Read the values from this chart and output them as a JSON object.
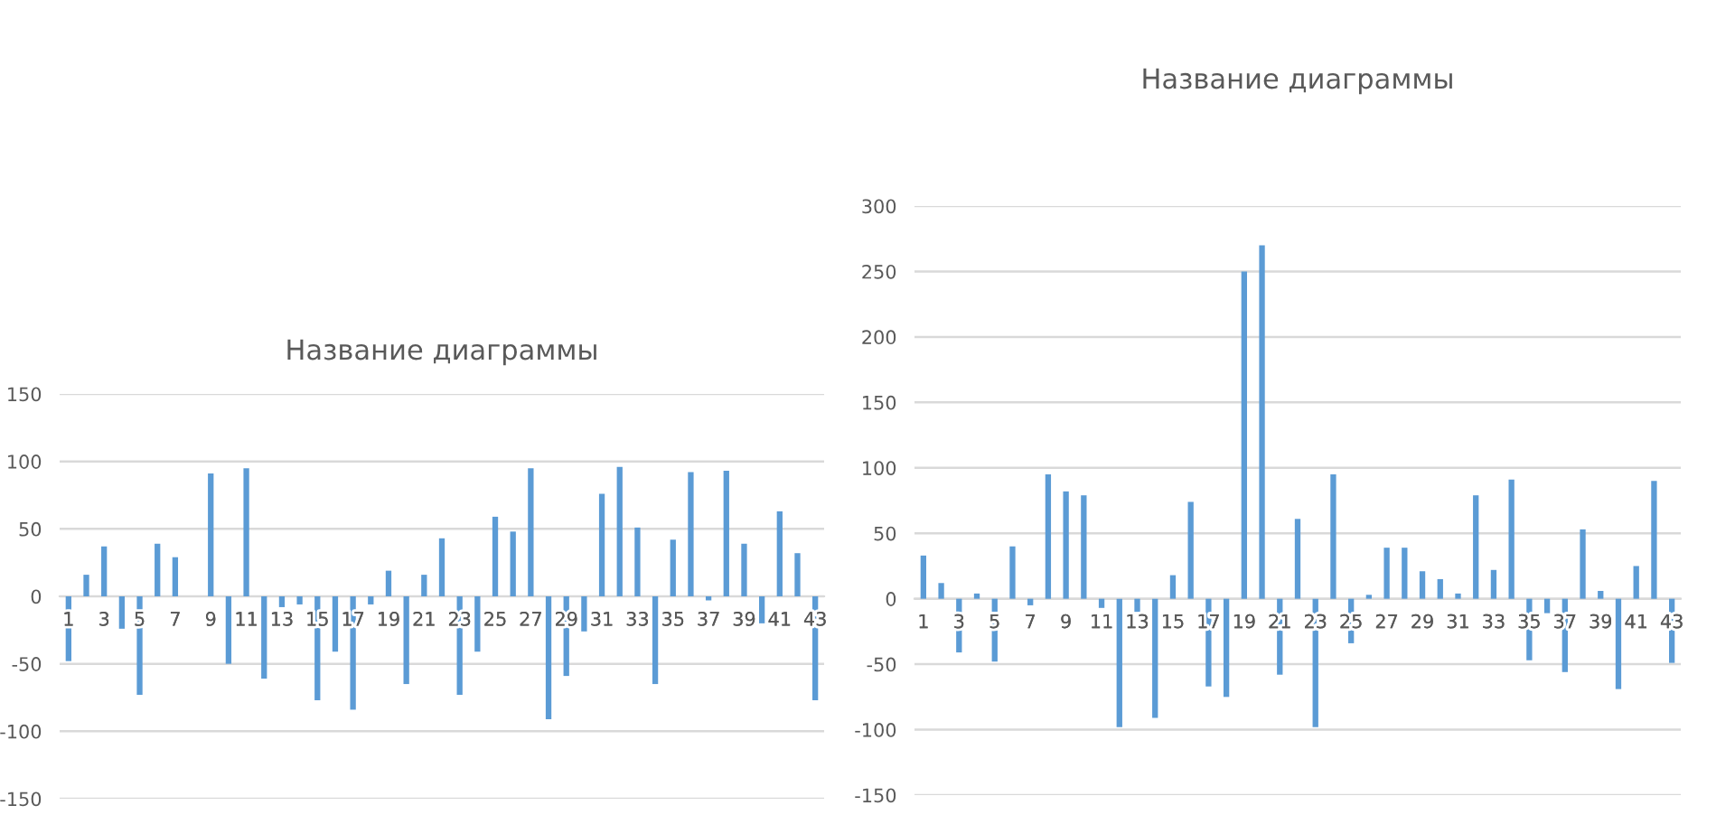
{
  "chart_data": [
    {
      "type": "bar",
      "title": "Название диаграммы",
      "categories": [
        "1",
        null,
        "3",
        null,
        "5",
        null,
        "7",
        null,
        "9",
        null,
        "11",
        null,
        "13",
        null,
        "15",
        null,
        "17",
        null,
        "19",
        null,
        "21",
        null,
        "23",
        null,
        "25",
        null,
        "27",
        null,
        "29",
        null,
        "31",
        null,
        "33",
        null,
        "35",
        null,
        "37",
        null,
        "39",
        null,
        "41",
        null,
        "43"
      ],
      "values": [
        -48,
        16,
        37,
        -24,
        -73,
        39,
        29,
        0,
        91,
        -50,
        95,
        -61,
        -8,
        -6,
        -77,
        -41,
        -84,
        -6,
        19,
        -65,
        16,
        43,
        -73,
        -41,
        59,
        48,
        95,
        -91,
        -59,
        -26,
        76,
        96,
        51,
        -65,
        42,
        92,
        -3,
        93,
        39,
        -20,
        63,
        32,
        -77
      ],
      "color": "#5b9bd5",
      "ylim": [
        -150,
        150
      ],
      "yticks": [
        -150,
        -100,
        -50,
        0,
        50,
        100,
        150
      ],
      "grid": "y"
    },
    {
      "type": "bar",
      "title": "Название диаграммы",
      "categories": [
        "1",
        null,
        "3",
        null,
        "5",
        null,
        "7",
        null,
        "9",
        null,
        "11",
        null,
        "13",
        null,
        "15",
        null,
        "17",
        null,
        "19",
        null,
        "21",
        null,
        "23",
        null,
        "25",
        null,
        "27",
        null,
        "29",
        null,
        "31",
        null,
        "33",
        null,
        "35",
        null,
        "37",
        null,
        "39",
        null,
        "41",
        null,
        "43"
      ],
      "values": [
        33,
        12,
        -41,
        4,
        -48,
        40,
        -5,
        95,
        82,
        79,
        -7,
        -98,
        -10,
        -91,
        18,
        74,
        -67,
        -75,
        250,
        270,
        -58,
        61,
        -98,
        95,
        -34,
        3,
        39,
        39,
        21,
        15,
        4,
        79,
        22,
        91,
        -47,
        -11,
        -56,
        53,
        6,
        -69,
        25,
        90,
        -49
      ],
      "color": "#5b9bd5",
      "ylim": [
        -150,
        300
      ],
      "yticks": [
        -150,
        -100,
        -50,
        0,
        50,
        100,
        150,
        200,
        250,
        300
      ],
      "grid": "y"
    }
  ]
}
